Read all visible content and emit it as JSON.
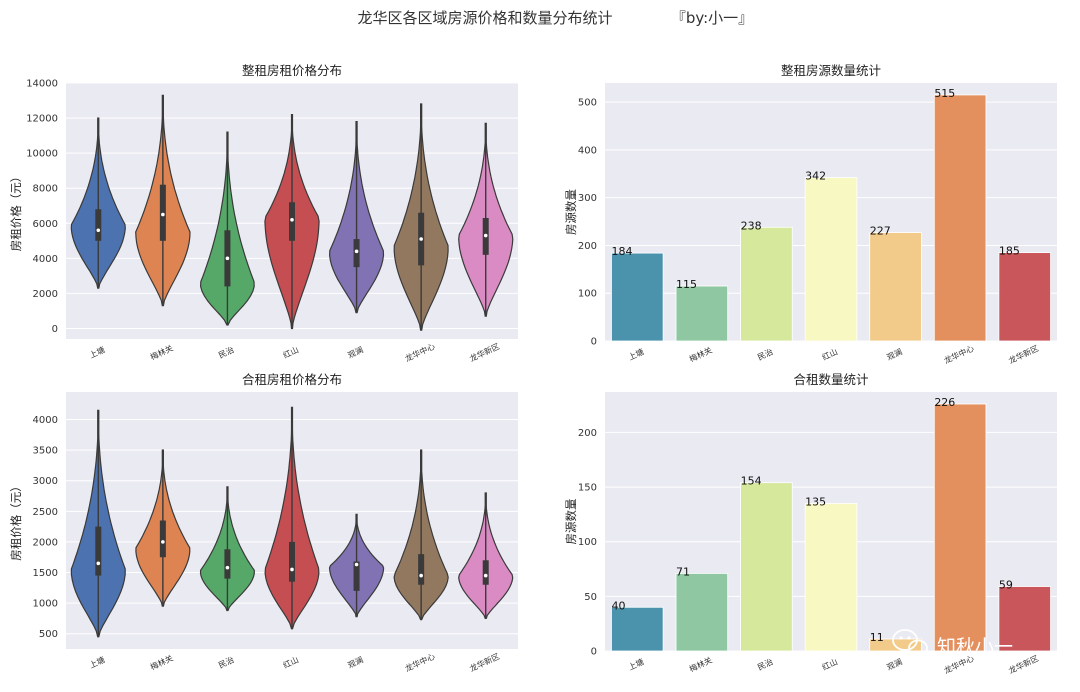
{
  "figure": {
    "title": "龙华区各区域房源价格和数量分布统计",
    "byline": "『by:小一』",
    "watermark": "知秋小一"
  },
  "chart_data": [
    {
      "type": "violin",
      "title": "整租房租价格分布",
      "ylabel": "房租价格（元）",
      "xlabel": "",
      "ylim": [
        -600,
        14000
      ],
      "yticks": [
        0,
        2000,
        4000,
        6000,
        8000,
        10000,
        12000,
        14000
      ],
      "grid": true,
      "categories": [
        "上塘",
        "梅林关",
        "民治",
        "红山",
        "观澜",
        "龙华中心",
        "龙华新区"
      ],
      "colors": [
        "#4c72b0",
        "#dd8452",
        "#55a868",
        "#c44e52",
        "#8172b3",
        "#937860",
        "#da8bc3"
      ],
      "series": [
        {
          "min": 2300,
          "q1": 5000,
          "median": 5600,
          "q3": 6800,
          "max": 12000,
          "peak": 5900
        },
        {
          "min": 1300,
          "q1": 5000,
          "median": 6500,
          "q3": 8200,
          "max": 13300,
          "peak": 5500
        },
        {
          "min": 200,
          "q1": 2400,
          "median": 4000,
          "q3": 5600,
          "max": 11200,
          "peak": 2600
        },
        {
          "min": 0,
          "q1": 5000,
          "median": 6200,
          "q3": 7200,
          "max": 12200,
          "peak": 6300
        },
        {
          "min": 900,
          "q1": 3500,
          "median": 4400,
          "q3": 5100,
          "max": 11800,
          "peak": 4400
        },
        {
          "min": -100,
          "q1": 3600,
          "median": 5100,
          "q3": 6600,
          "max": 12800,
          "peak": 4700
        },
        {
          "min": 700,
          "q1": 4200,
          "median": 5300,
          "q3": 6300,
          "max": 11700,
          "peak": 5300
        }
      ]
    },
    {
      "type": "bar",
      "title": "整租房源数量统计",
      "ylabel": "房源数量",
      "xlabel": "",
      "ylim": [
        0,
        540
      ],
      "yticks": [
        0,
        100,
        200,
        300,
        400,
        500
      ],
      "grid": true,
      "categories": [
        "上塘",
        "梅林关",
        "民治",
        "红山",
        "观澜",
        "龙华中心",
        "龙华新区"
      ],
      "values": [
        184,
        115,
        238,
        342,
        227,
        515,
        185
      ],
      "colors": [
        "#4b93ac",
        "#8ec7a2",
        "#d5e89c",
        "#f8f8c2",
        "#f2cb8a",
        "#e4905e",
        "#c9565a"
      ]
    },
    {
      "type": "violin",
      "title": "合租房租价格分布",
      "ylabel": "房租价格（元）",
      "xlabel": "",
      "ylim": [
        250,
        4450
      ],
      "yticks": [
        500,
        1000,
        1500,
        2000,
        2500,
        3000,
        3500,
        4000
      ],
      "grid": true,
      "categories": [
        "上塘",
        "梅林关",
        "民治",
        "红山",
        "观澜",
        "龙华中心",
        "龙华新区"
      ],
      "colors": [
        "#4c72b0",
        "#dd8452",
        "#55a868",
        "#c44e52",
        "#8172b3",
        "#937860",
        "#da8bc3"
      ],
      "series": [
        {
          "min": 450,
          "q1": 1450,
          "median": 1650,
          "q3": 2250,
          "max": 4150,
          "peak": 1550
        },
        {
          "min": 950,
          "q1": 1750,
          "median": 2000,
          "q3": 2350,
          "max": 3500,
          "peak": 1900
        },
        {
          "min": 880,
          "q1": 1400,
          "median": 1580,
          "q3": 1880,
          "max": 2900,
          "peak": 1530
        },
        {
          "min": 580,
          "q1": 1350,
          "median": 1550,
          "q3": 2000,
          "max": 4200,
          "peak": 1550
        },
        {
          "min": 780,
          "q1": 1200,
          "median": 1630,
          "q3": 1680,
          "max": 2450,
          "peak": 1600
        },
        {
          "min": 730,
          "q1": 1300,
          "median": 1450,
          "q3": 1800,
          "max": 3500,
          "peak": 1450
        },
        {
          "min": 750,
          "q1": 1300,
          "median": 1450,
          "q3": 1700,
          "max": 2800,
          "peak": 1450
        }
      ]
    },
    {
      "type": "bar",
      "title": "合租数量统计",
      "ylabel": "房源数量",
      "xlabel": "",
      "ylim": [
        0,
        237
      ],
      "yticks": [
        0,
        50,
        100,
        150,
        200
      ],
      "grid": true,
      "categories": [
        "上塘",
        "梅林关",
        "民治",
        "红山",
        "观澜",
        "龙华中心",
        "龙华新区"
      ],
      "values": [
        40,
        71,
        154,
        135,
        11,
        226,
        59
      ],
      "colors": [
        "#4b93ac",
        "#8ec7a2",
        "#d5e89c",
        "#f8f8c2",
        "#f2cb8a",
        "#e4905e",
        "#c9565a"
      ]
    }
  ]
}
